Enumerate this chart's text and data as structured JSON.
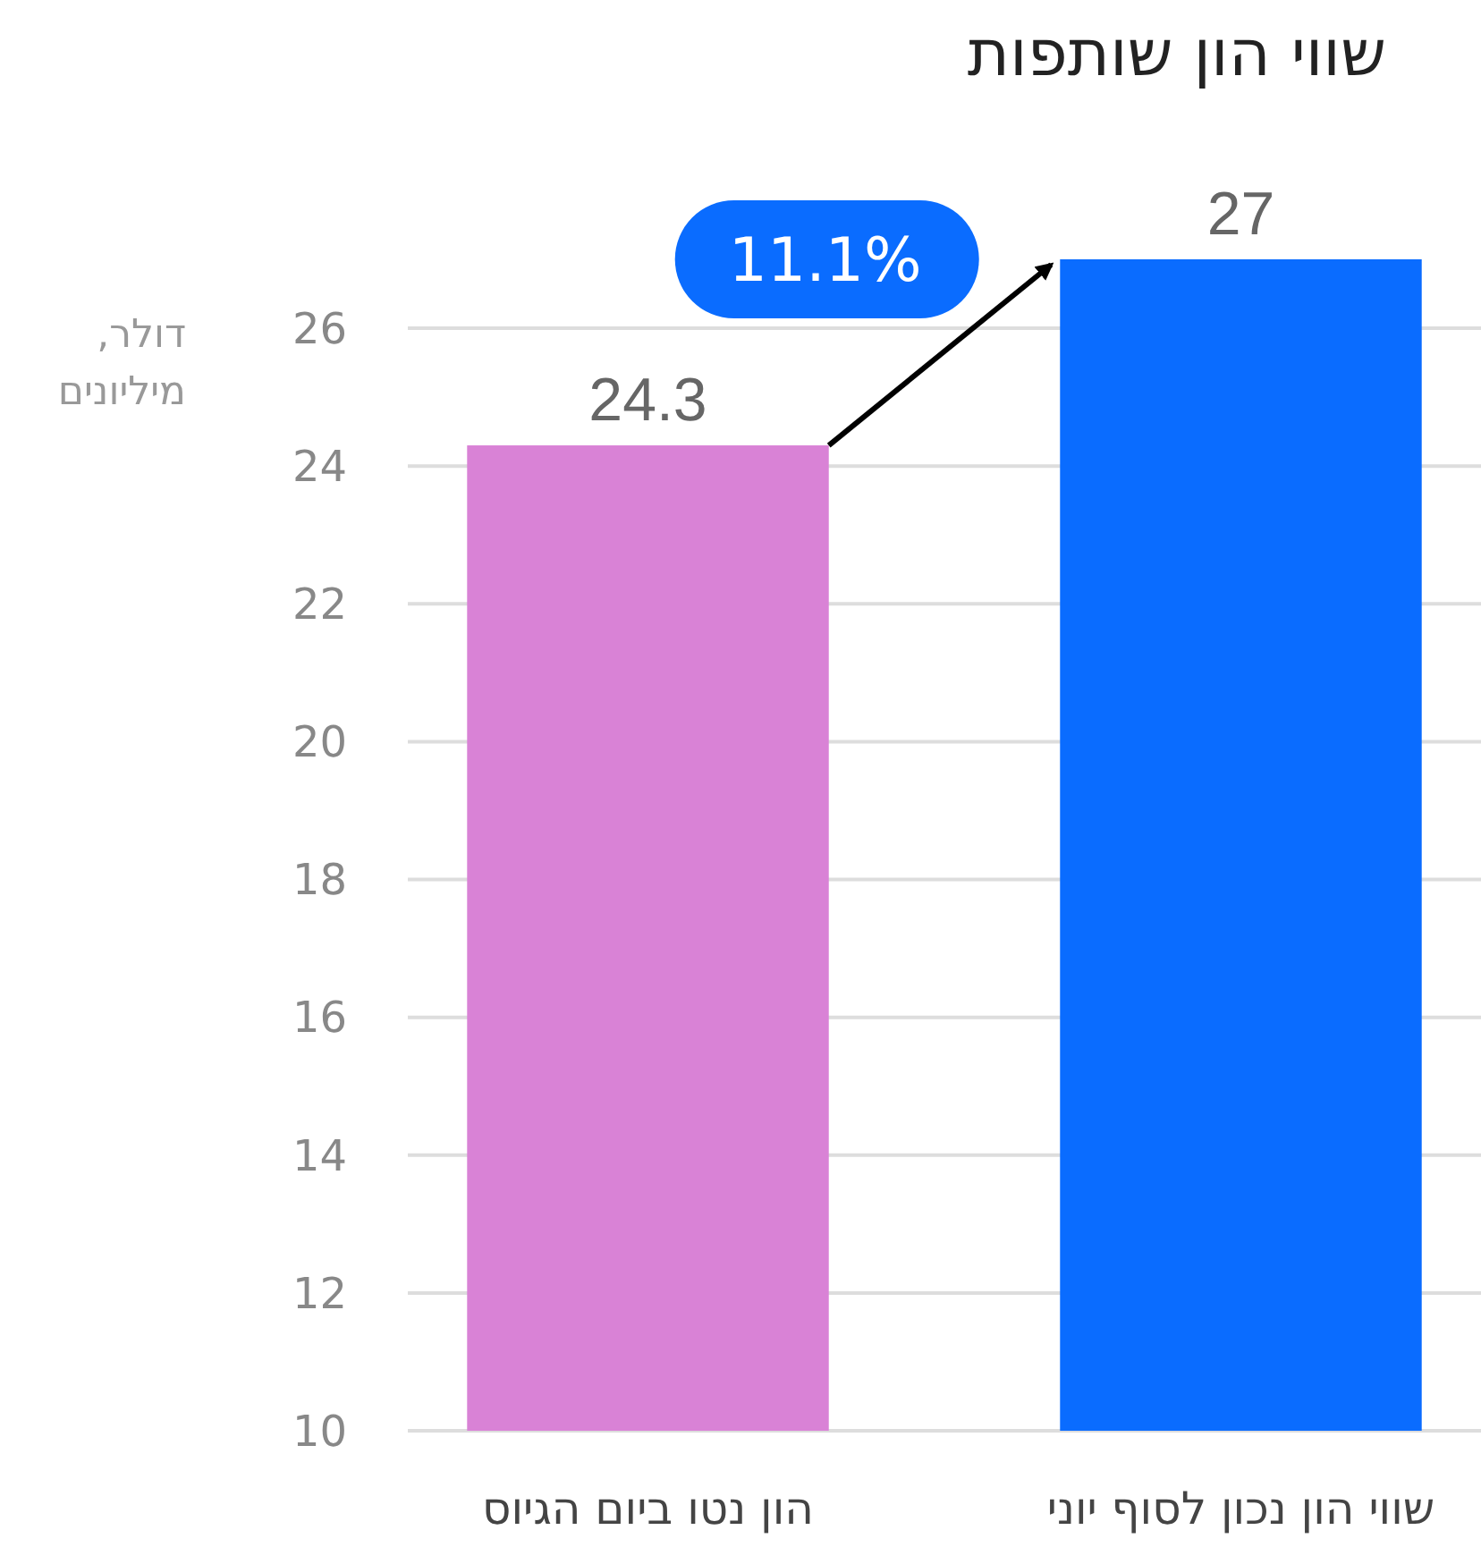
{
  "chart_data": {
    "type": "bar",
    "title": "שווי הון שותפות",
    "ylabel": "דולר, מיליונים",
    "categories": [
      "הון נטו ביום הגיוס",
      "שווי הון נכון לסוף יוני"
    ],
    "values": [
      24.3,
      27
    ],
    "colors": [
      "#d982d6",
      "#0a6cff"
    ],
    "ylim": [
      10,
      27
    ],
    "yticks": [
      10,
      12,
      14,
      16,
      18,
      20,
      22,
      24,
      26
    ],
    "grid": "y",
    "data_labels": true,
    "annotations": [
      "11.1%"
    ]
  }
}
